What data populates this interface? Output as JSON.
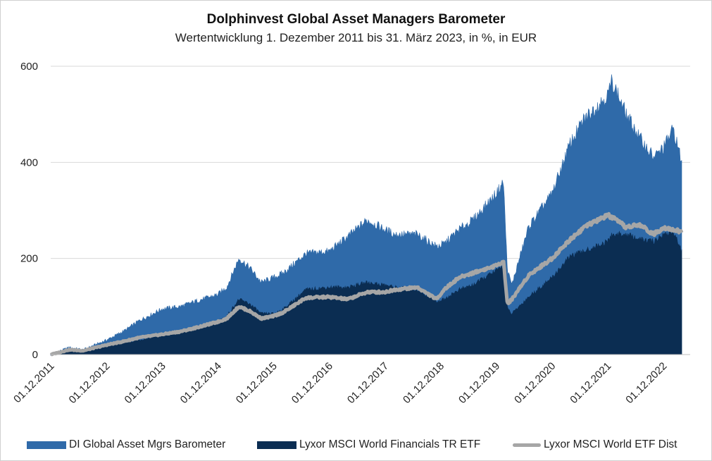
{
  "header": {
    "title": "Dolphinvest Global Asset Managers Barometer",
    "subtitle": "Wertentwicklung 1. Dezember 2011 bis 31. März 2023,  in %, in EUR"
  },
  "legend": {
    "items": [
      {
        "label": "DI Global Asset Mgrs Barometer",
        "color": "#2f6aa9"
      },
      {
        "label": "Lyxor MSCI World Financials TR ETF",
        "color": "#0b2d52"
      },
      {
        "label": "Lyxor MSCI World ETF Dist",
        "color": "#a6a6a6"
      }
    ]
  },
  "chart_data": {
    "type": "area",
    "title": "Dolphinvest Global Asset Managers Barometer",
    "subtitle": "Wertentwicklung 1. Dezember 2011 bis 31. März 2023,  in %, in EUR",
    "xlabel": "",
    "ylabel": "",
    "ylim": [
      0,
      600
    ],
    "yticks": [
      0,
      200,
      400,
      600
    ],
    "x_tick_labels": [
      "01.12.2011",
      "01.12.2012",
      "01.12.2013",
      "01.12.2014",
      "01.12.2015",
      "01.12.2016",
      "01.12.2017",
      "01.12.2018",
      "01.12.2019",
      "01.12.2020",
      "01.12.2021",
      "01.12.2022"
    ],
    "grid": "horizontal",
    "legend_position": "bottom",
    "x": [
      2011.92,
      2012.25,
      2012.5,
      2012.92,
      2013.25,
      2013.5,
      2013.92,
      2014.25,
      2014.5,
      2014.92,
      2015.08,
      2015.3,
      2015.5,
      2015.7,
      2015.92,
      2016.1,
      2016.5,
      2016.92,
      2017.25,
      2017.6,
      2017.92,
      2018.1,
      2018.5,
      2018.85,
      2018.98,
      2019.25,
      2019.5,
      2019.92,
      2020.05,
      2020.12,
      2020.2,
      2020.5,
      2020.92,
      2021.25,
      2021.5,
      2021.92,
      2022.0,
      2022.25,
      2022.5,
      2022.75,
      2022.92,
      2023.1,
      2023.25
    ],
    "series": [
      {
        "name": "DI Global Asset Mgrs Barometer",
        "color": "#2f6aa9",
        "values": [
          0,
          15,
          10,
          30,
          50,
          70,
          95,
          100,
          110,
          125,
          140,
          200,
          180,
          150,
          160,
          170,
          210,
          215,
          245,
          280,
          260,
          250,
          250,
          225,
          230,
          260,
          280,
          335,
          360,
          175,
          145,
          265,
          335,
          440,
          490,
          540,
          570,
          500,
          450,
          410,
          430,
          470,
          400
        ]
      },
      {
        "name": "Lyxor MSCI World Financials TR ETF",
        "color": "#0b2d52",
        "values": [
          0,
          8,
          5,
          20,
          25,
          30,
          40,
          45,
          55,
          70,
          80,
          115,
          105,
          85,
          85,
          95,
          135,
          140,
          140,
          150,
          145,
          140,
          135,
          110,
          115,
          135,
          145,
          175,
          185,
          95,
          85,
          120,
          160,
          205,
          215,
          235,
          250,
          250,
          240,
          235,
          250,
          255,
          215
        ]
      },
      {
        "name": "Lyxor MSCI World ETF Dist",
        "color": "#a6a6a6",
        "values": [
          0,
          10,
          8,
          20,
          28,
          35,
          42,
          48,
          55,
          68,
          75,
          100,
          90,
          75,
          80,
          88,
          118,
          120,
          115,
          130,
          130,
          135,
          140,
          115,
          135,
          160,
          170,
          185,
          195,
          105,
          115,
          165,
          200,
          240,
          265,
          290,
          285,
          265,
          270,
          250,
          265,
          260,
          255
        ]
      }
    ]
  }
}
